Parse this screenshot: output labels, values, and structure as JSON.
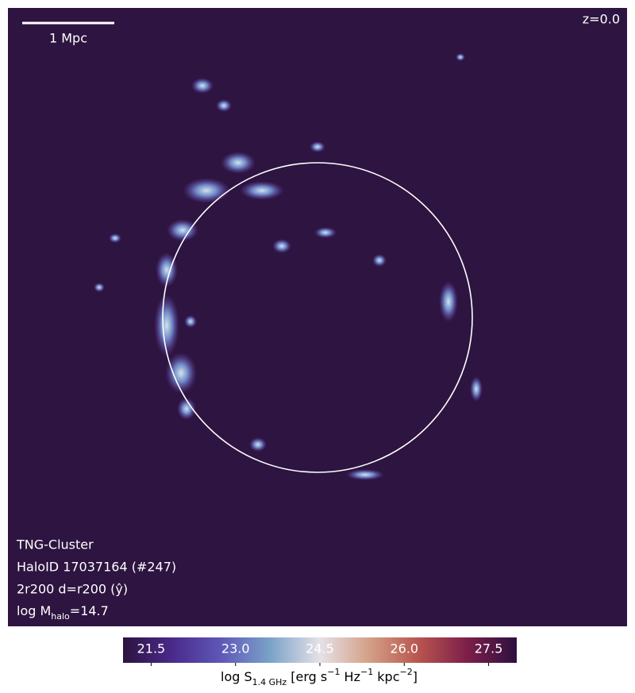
{
  "panel": {
    "redshift": "z=0.0",
    "scale_bar": "1 Mpc",
    "labels": [
      "TNG-Cluster",
      "HaloID 17037164 (#247)",
      "2r200 d=r200 (ŷ)"
    ],
    "mass_label": [
      {
        "text": "log M",
        "shift": "none"
      },
      {
        "text": "halo",
        "shift": "sub"
      },
      {
        "text": "=14.7",
        "shift": "none"
      }
    ]
  },
  "colorbar": {
    "range": [
      21,
      28
    ],
    "ticks": [
      21.5,
      {
        "value": 23,
        "label": "23.0"
      },
      24.5,
      {
        "value": 26,
        "label": "26.0"
      },
      27.5
    ],
    "colors": [
      "#2d1340",
      "#4a2a8a",
      "#5e58b8",
      "#7ba3c8",
      "#e6e1e8",
      "#d4a086",
      "#b8554f",
      "#7d1e4a",
      "#2d1040"
    ],
    "label_parts": [
      {
        "text": "log S",
        "shift": "none"
      },
      {
        "text": "1.4 GHz",
        "shift": "sub"
      },
      {
        "text": " [erg s",
        "shift": "none"
      },
      {
        "text": "−1",
        "shift": "super"
      },
      {
        "text": " Hz",
        "shift": "none"
      },
      {
        "text": "−1",
        "shift": "super"
      },
      {
        "text": " kpc",
        "shift": "none"
      },
      {
        "text": "−2",
        "shift": "super"
      },
      {
        "text": "]",
        "shift": "none"
      }
    ]
  }
}
